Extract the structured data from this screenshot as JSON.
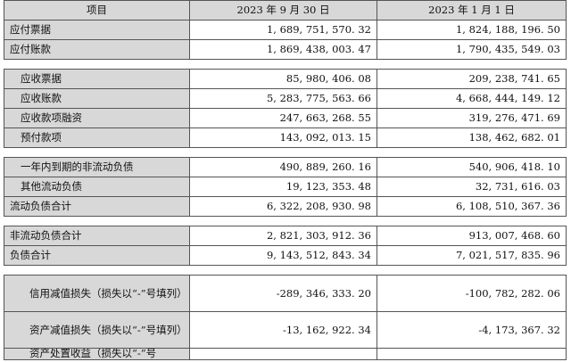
{
  "header": {
    "item": "项目",
    "col1": "2023 年 9 月 30 日",
    "col2": "2023 年 1 月 1 日"
  },
  "group1": [
    {
      "label": "应付票据",
      "v1": "1, 689, 751, 570. 32",
      "v2": "1, 824, 188, 196. 50"
    },
    {
      "label": "应付账款",
      "v1": "1, 869, 438, 003. 47",
      "v2": "1, 790, 435, 549. 03"
    }
  ],
  "group2": [
    {
      "label": "应收票据",
      "v1": "85, 980, 406. 08",
      "v2": "209, 238, 741. 65"
    },
    {
      "label": "应收账款",
      "v1": "5, 283, 775, 563. 66",
      "v2": "4, 668, 444, 149. 12"
    },
    {
      "label": "应收款项融资",
      "v1": "247, 663, 268. 55",
      "v2": "319, 276, 471. 69"
    },
    {
      "label": "预付款项",
      "v1": "143, 092, 013. 15",
      "v2": "138, 462, 682. 01"
    }
  ],
  "group3": [
    {
      "label": "一年内到期的非流动负债",
      "v1": "490, 889, 260. 16",
      "v2": "540, 906, 418. 10"
    },
    {
      "label": "其他流动负债",
      "v1": "19, 123, 353. 48",
      "v2": "32, 731, 616. 03"
    },
    {
      "label": "流动负债合计",
      "v1": "6, 322, 208, 930. 98",
      "v2": "6, 108, 510, 367. 36"
    }
  ],
  "group4": [
    {
      "label": "非流动负债合计",
      "v1": "2, 821, 303, 912. 36",
      "v2": "913, 007, 468. 60"
    },
    {
      "label": "负债合计",
      "v1": "9, 143, 512, 843. 34",
      "v2": "7, 021, 517, 835. 96"
    }
  ],
  "group5": [
    {
      "label": "信用减值损失（损失以“-”号填列）",
      "v1": "-289, 346, 333. 20",
      "v2": "-100, 782, 282. 06"
    },
    {
      "label": "资产减值损失（损失以“-”号填列）",
      "v1": "-13, 162, 922. 34",
      "v2": "-4, 173, 367. 32"
    },
    {
      "label": "资产处置收益（损失以“-”号",
      "v1": "",
      "v2": ""
    }
  ]
}
